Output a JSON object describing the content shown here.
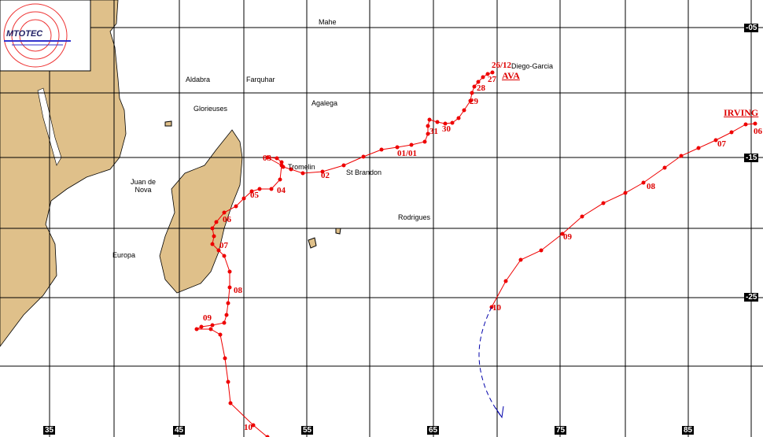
{
  "logo": "MTOTEC",
  "grid": {
    "lon": [
      "35",
      "45",
      "55",
      "65",
      "75",
      "85"
    ],
    "lat": [
      "-05",
      "-15",
      "-25"
    ]
  },
  "places": [
    "Mahe",
    "Diego-Garcia",
    "Aldabra",
    "Farquhar",
    "Glorieuses",
    "Agalega",
    "Tromelin",
    "St Brandon",
    "Juan de Nova",
    "Rodrigues",
    "Europa"
  ],
  "storms": [
    {
      "name": "AVA",
      "dates": [
        "26/12",
        "27",
        "28",
        "29",
        "30",
        "31",
        "01/01",
        "02",
        "03",
        "04",
        "05",
        "06",
        "07",
        "08",
        "09",
        "10"
      ]
    },
    {
      "name": "IRVING",
      "dates": [
        "06",
        "07",
        "08",
        "09",
        "10"
      ]
    }
  ]
}
